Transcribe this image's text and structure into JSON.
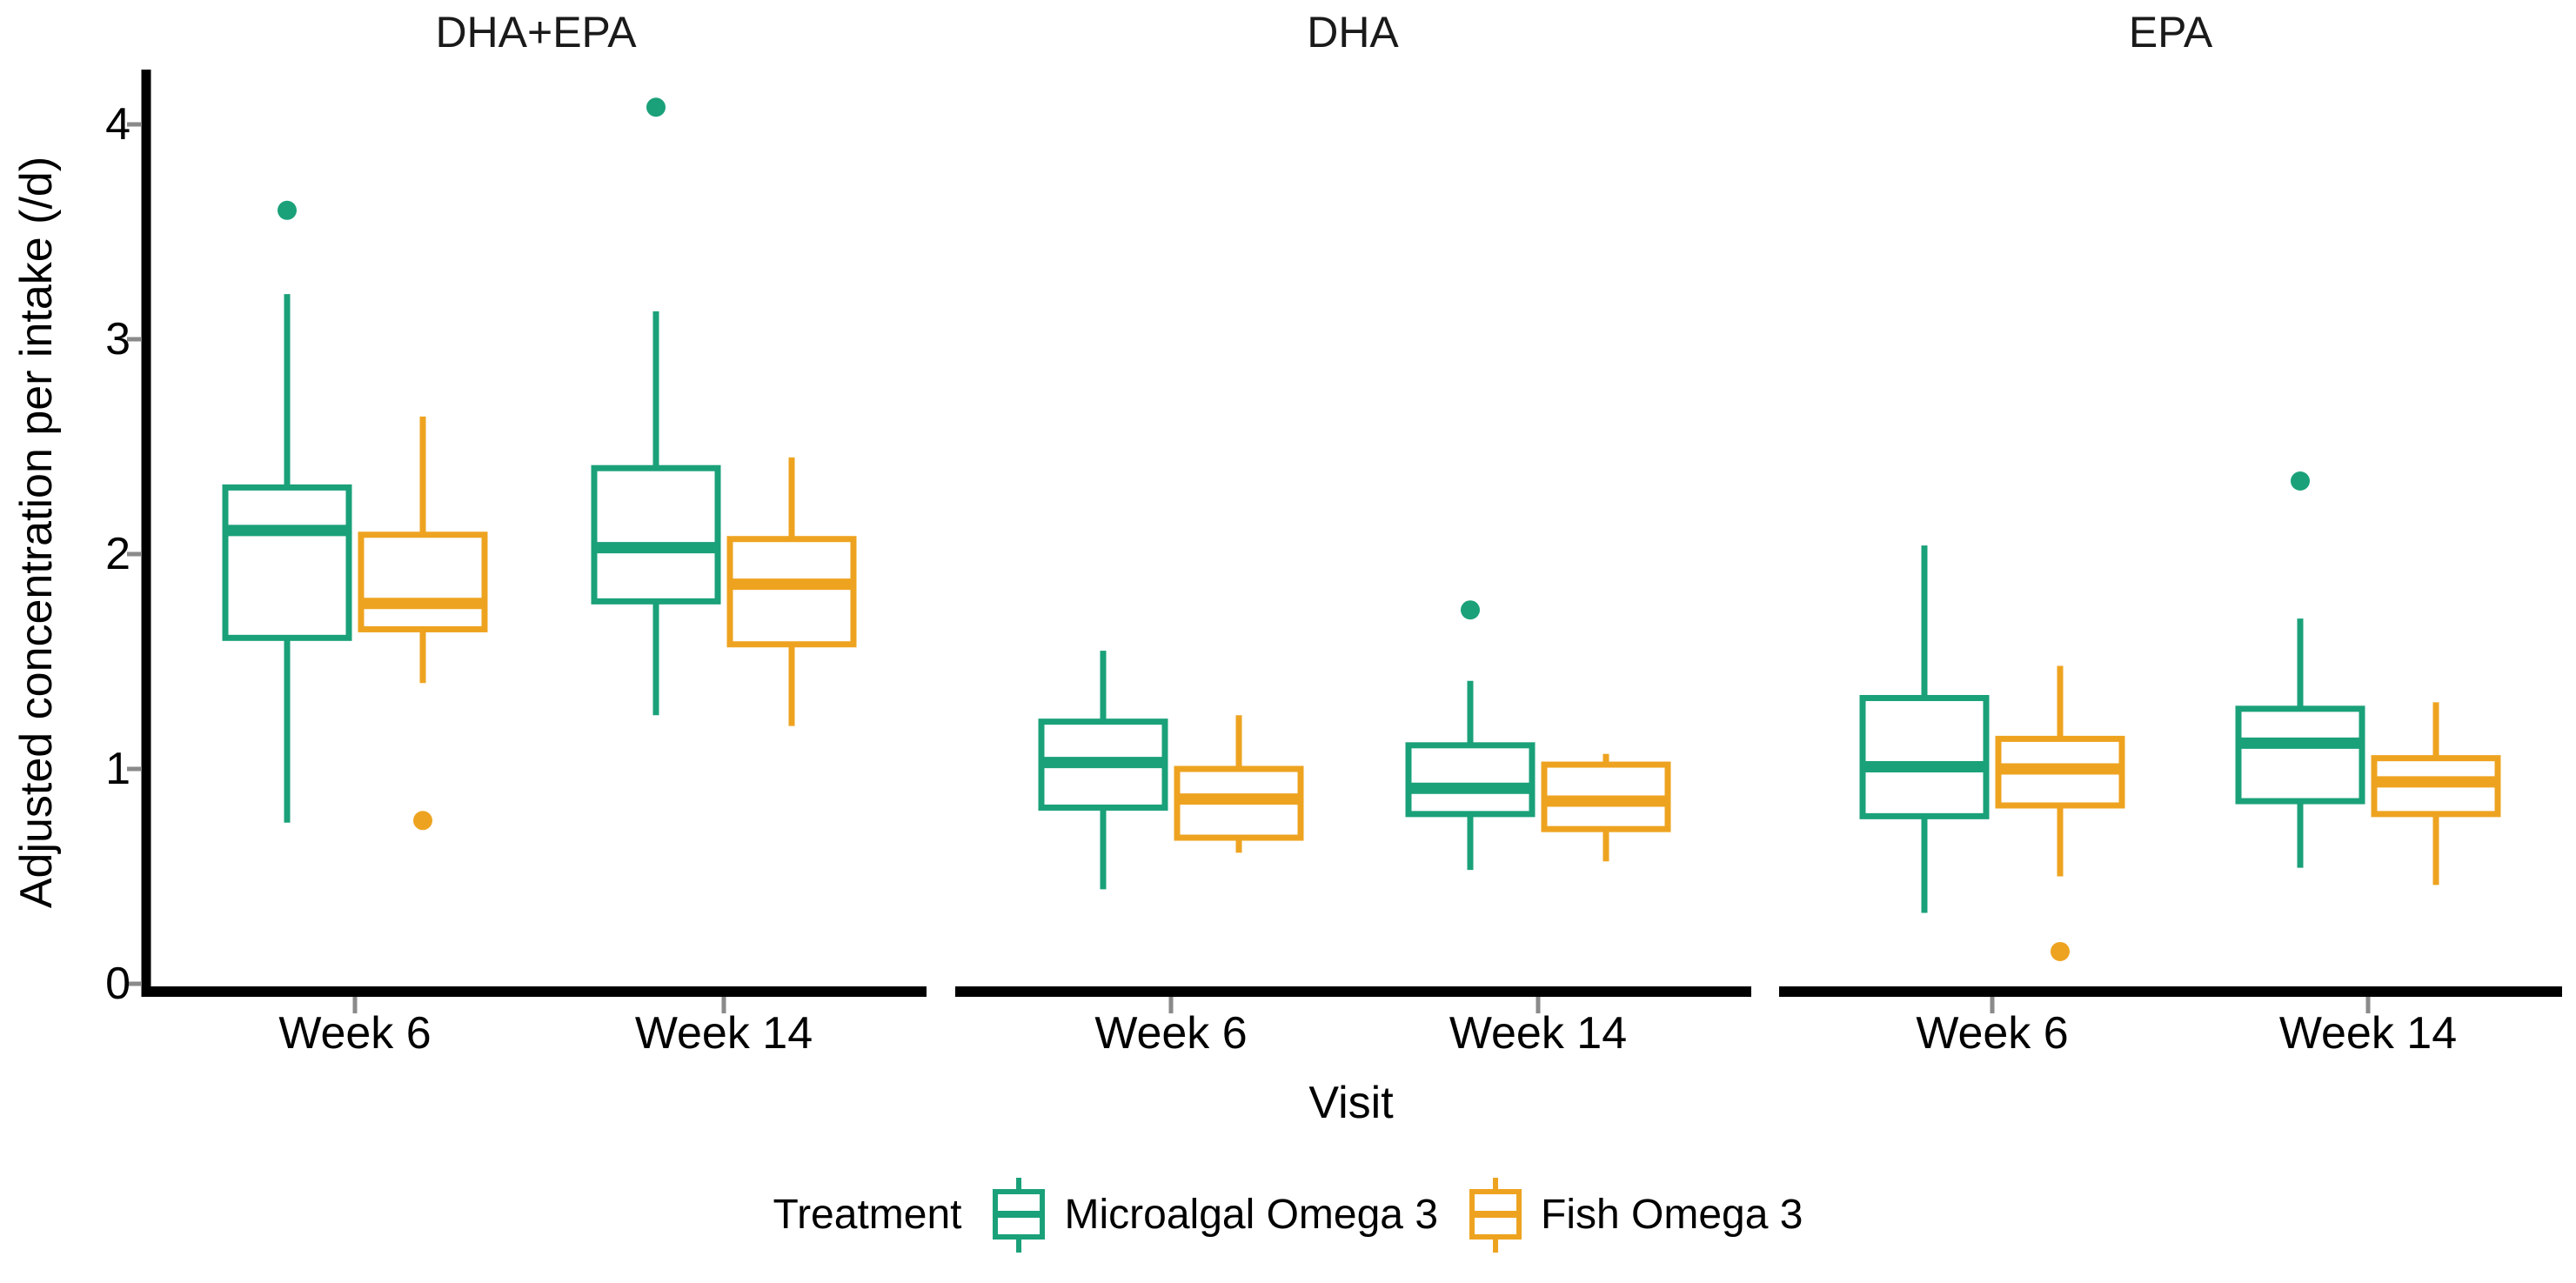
{
  "chart_data": {
    "type": "boxplot",
    "title": "",
    "xlabel": "Visit",
    "ylabel": "Adjusted concentration per intake (/d)",
    "categories": [
      "Week 6",
      "Week 14"
    ],
    "y_ticks": [
      "0",
      "1",
      "2",
      "3",
      "4"
    ],
    "ylim": [
      0,
      4.25
    ],
    "grid": false,
    "legend": {
      "title": "Treatment",
      "position": "bottom",
      "series": [
        {
          "name": "Microalgal Omega 3",
          "color": "#1AA179"
        },
        {
          "name": "Fish Omega 3",
          "color": "#EEA320"
        }
      ]
    },
    "facets": [
      {
        "title": "DHA+EPA",
        "boxes": [
          {
            "series": "Microalgal Omega 3",
            "category": "Week 6",
            "whisker_low": 0.75,
            "q1": 1.61,
            "median": 2.11,
            "q3": 2.31,
            "whisker_high": 3.21,
            "outliers": [
              3.6
            ]
          },
          {
            "series": "Fish Omega 3",
            "category": "Week 6",
            "whisker_low": 1.4,
            "q1": 1.65,
            "median": 1.77,
            "q3": 2.09,
            "whisker_high": 2.64,
            "outliers": [
              0.76
            ]
          },
          {
            "series": "Microalgal Omega 3",
            "category": "Week 14",
            "whisker_low": 1.25,
            "q1": 1.78,
            "median": 2.03,
            "q3": 2.4,
            "whisker_high": 3.13,
            "outliers": [
              4.08
            ]
          },
          {
            "series": "Fish Omega 3",
            "category": "Week 14",
            "whisker_low": 1.2,
            "q1": 1.58,
            "median": 1.86,
            "q3": 2.07,
            "whisker_high": 2.45,
            "outliers": []
          }
        ]
      },
      {
        "title": "DHA",
        "boxes": [
          {
            "series": "Microalgal Omega 3",
            "category": "Week 6",
            "whisker_low": 0.44,
            "q1": 0.82,
            "median": 1.03,
            "q3": 1.22,
            "whisker_high": 1.55,
            "outliers": []
          },
          {
            "series": "Fish Omega 3",
            "category": "Week 6",
            "whisker_low": 0.61,
            "q1": 0.68,
            "median": 0.86,
            "q3": 1.0,
            "whisker_high": 1.25,
            "outliers": []
          },
          {
            "series": "Microalgal Omega 3",
            "category": "Week 14",
            "whisker_low": 0.53,
            "q1": 0.79,
            "median": 0.91,
            "q3": 1.11,
            "whisker_high": 1.41,
            "outliers": [
              1.74
            ]
          },
          {
            "series": "Fish Omega 3",
            "category": "Week 14",
            "whisker_low": 0.57,
            "q1": 0.72,
            "median": 0.85,
            "q3": 1.02,
            "whisker_high": 1.07,
            "outliers": []
          }
        ]
      },
      {
        "title": "EPA",
        "boxes": [
          {
            "series": "Microalgal Omega 3",
            "category": "Week 6",
            "whisker_low": 0.33,
            "q1": 0.78,
            "median": 1.01,
            "q3": 1.33,
            "whisker_high": 2.04,
            "outliers": []
          },
          {
            "series": "Fish Omega 3",
            "category": "Week 6",
            "whisker_low": 0.5,
            "q1": 0.83,
            "median": 1.0,
            "q3": 1.14,
            "whisker_high": 1.48,
            "outliers": [
              0.15
            ]
          },
          {
            "series": "Microalgal Omega 3",
            "category": "Week 14",
            "whisker_low": 0.54,
            "q1": 0.85,
            "median": 1.12,
            "q3": 1.28,
            "whisker_high": 1.7,
            "outliers": [
              2.34
            ]
          },
          {
            "series": "Fish Omega 3",
            "category": "Week 14",
            "whisker_low": 0.46,
            "q1": 0.79,
            "median": 0.94,
            "q3": 1.05,
            "whisker_high": 1.31,
            "outliers": []
          }
        ]
      }
    ]
  }
}
